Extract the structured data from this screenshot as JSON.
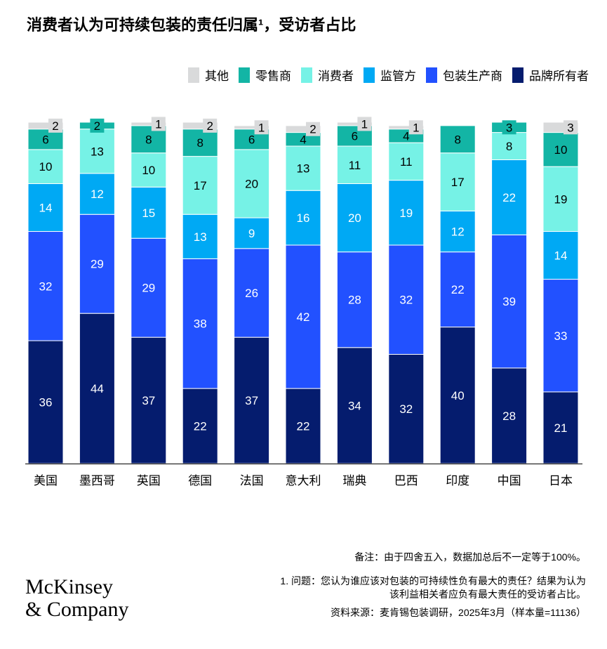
{
  "title": "消费者认为可持续包装的责任归属¹，受访者占比",
  "chart_data": {
    "type": "bar",
    "stacked": true,
    "title": "消费者认为可持续包装的责任归属¹，受访者占比",
    "ylim": [
      0,
      100
    ],
    "legend_position": "top-right",
    "categories": [
      "美国",
      "墨西哥",
      "英国",
      "德国",
      "法国",
      "意大利",
      "瑞典",
      "巴西",
      "印度",
      "中国",
      "日本"
    ],
    "series": [
      {
        "name": "品牌所有者",
        "color": "#051C6E",
        "values": [
          36,
          44,
          37,
          22,
          37,
          22,
          34,
          32,
          40,
          28,
          21
        ]
      },
      {
        "name": "包装生产商",
        "color": "#2251FF",
        "values": [
          32,
          29,
          29,
          38,
          26,
          42,
          28,
          32,
          22,
          39,
          33
        ]
      },
      {
        "name": "监管方",
        "color": "#00A9F4",
        "values": [
          14,
          12,
          15,
          13,
          9,
          16,
          20,
          19,
          12,
          22,
          14
        ]
      },
      {
        "name": "消费者",
        "color": "#76F2E6",
        "values": [
          10,
          13,
          10,
          17,
          20,
          13,
          11,
          11,
          17,
          8,
          19
        ]
      },
      {
        "name": "零售商",
        "color": "#13B5A5",
        "values": [
          6,
          2,
          8,
          8,
          6,
          4,
          6,
          4,
          8,
          3,
          10
        ]
      },
      {
        "name": "其他",
        "color": "#D9DADB",
        "values": [
          2,
          0,
          1,
          2,
          1,
          2,
          1,
          1,
          0,
          0,
          3
        ]
      }
    ]
  },
  "legend_order": [
    "其他",
    "零售商",
    "消费者",
    "监管方",
    "包装生产商",
    "品牌所有者"
  ],
  "notes": {
    "note": "备注：由于四舍五入，数据加总后不一定等于100%。",
    "footnote_1a": "1.   问题：您认为谁应该对包装的可持续性负有最大的责任？结果为认为",
    "footnote_1b": "该利益相关者应负有最大责任的受访者占比。",
    "source": "资料来源：麦肯锡包装调研，2025年3月（样本量=11136）"
  },
  "logo": {
    "line1": "McKinsey",
    "line2": "& Company"
  }
}
